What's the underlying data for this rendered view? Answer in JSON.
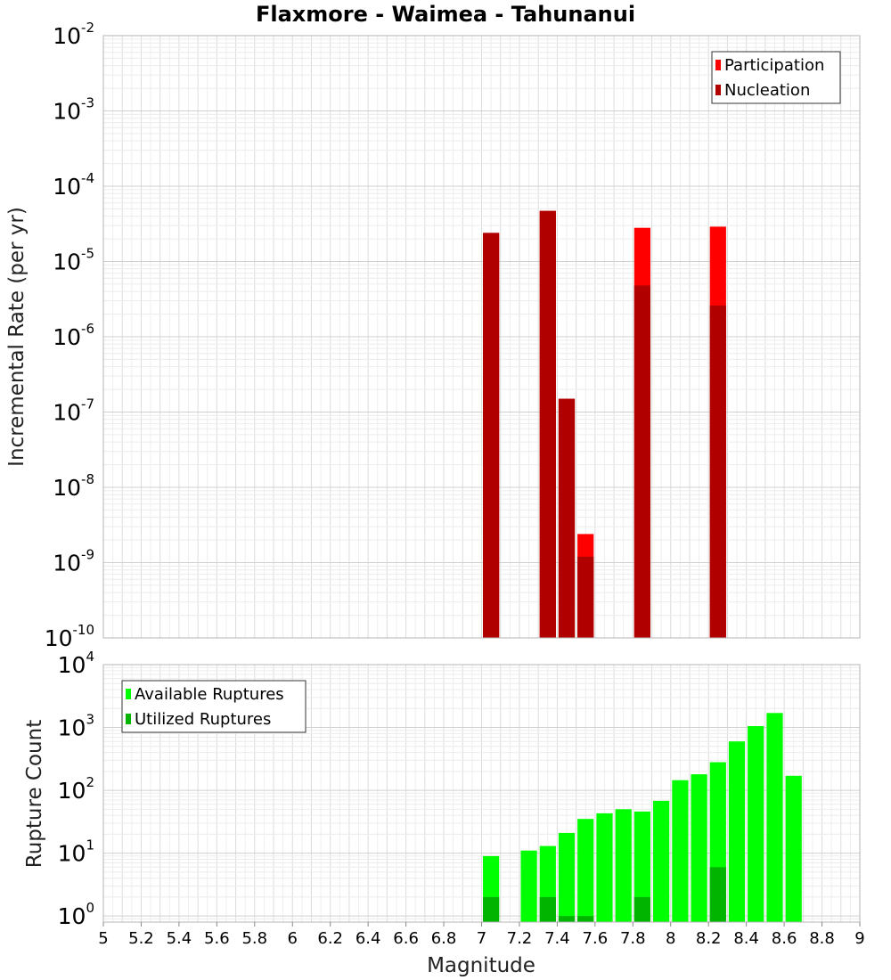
{
  "chart_data": [
    {
      "type": "bar",
      "title": "Flaxmore - Waimea - Tahunanui",
      "xlabel": "Magnitude",
      "ylabel": "Incremental Rate (per yr)",
      "yscale": "log",
      "ylim": [
        1e-10,
        0.01
      ],
      "xlim": [
        5,
        9
      ],
      "bin_width": 0.1,
      "x": [
        7.05,
        7.35,
        7.45,
        7.55,
        7.85,
        8.25
      ],
      "series": [
        {
          "name": "Participation",
          "color": "#ff0000",
          "values": [
            2.4e-05,
            4.7e-05,
            1.5e-07,
            2.4e-09,
            2.8e-05,
            2.9e-05
          ]
        },
        {
          "name": "Nucleation",
          "color": "#b00000",
          "values": [
            2.4e-05,
            4.7e-05,
            1.5e-07,
            1.2e-09,
            4.8e-06,
            2.6e-06
          ]
        }
      ],
      "legend": [
        "Participation",
        "Nucleation"
      ],
      "legend_position": "top-right",
      "y_tick_labels": [
        {
          "base": "10",
          "exp": "-10"
        },
        {
          "base": "10",
          "exp": "-9"
        },
        {
          "base": "10",
          "exp": "-8"
        },
        {
          "base": "10",
          "exp": "-7"
        },
        {
          "base": "10",
          "exp": "-6"
        },
        {
          "base": "10",
          "exp": "-5"
        },
        {
          "base": "10",
          "exp": "-4"
        },
        {
          "base": "10",
          "exp": "-3"
        },
        {
          "base": "10",
          "exp": "-2"
        }
      ],
      "grid": true
    },
    {
      "type": "bar",
      "title": "",
      "xlabel": "Magnitude",
      "ylabel": "Rupture Count",
      "yscale": "log",
      "ylim": [
        0.8,
        10000
      ],
      "xlim": [
        5,
        9
      ],
      "bin_width": 0.1,
      "x": [
        7.05,
        7.25,
        7.35,
        7.45,
        7.55,
        7.65,
        7.75,
        7.85,
        7.95,
        8.05,
        8.15,
        8.25,
        8.35,
        8.45,
        8.55,
        8.65
      ],
      "series": [
        {
          "name": "Available Ruptures",
          "color": "#00ff00",
          "values": [
            9,
            11,
            13,
            21,
            35,
            43,
            50,
            46,
            68,
            145,
            180,
            280,
            600,
            1050,
            1700,
            170
          ]
        },
        {
          "name": "Utilized Ruptures",
          "color": "#00b400",
          "values": [
            2,
            0,
            2,
            1,
            1,
            0,
            0,
            2,
            0,
            0,
            0,
            6,
            0,
            0,
            0,
            0
          ]
        }
      ],
      "legend": [
        "Available Ruptures",
        "Utilized Ruptures"
      ],
      "legend_position": "top-left",
      "y_tick_labels": [
        {
          "base": "10",
          "exp": "0"
        },
        {
          "base": "10",
          "exp": "1"
        },
        {
          "base": "10",
          "exp": "2"
        },
        {
          "base": "10",
          "exp": "3"
        },
        {
          "base": "10",
          "exp": "4"
        }
      ],
      "x_tick_labels": [
        "5",
        "5.2",
        "5.4",
        "5.6",
        "5.8",
        "6",
        "6.2",
        "6.4",
        "6.6",
        "6.8",
        "7",
        "7.2",
        "7.4",
        "7.6",
        "7.8",
        "8",
        "8.2",
        "8.4",
        "8.6",
        "8.8",
        "9"
      ],
      "grid": true
    }
  ]
}
